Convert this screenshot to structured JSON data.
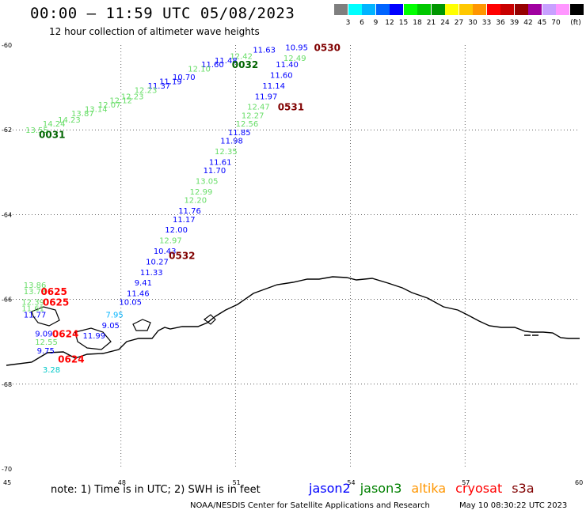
{
  "header": {
    "title": "00:00 – 11:59 UTC 05/08/2023",
    "subtitle": "12 hour collection of altimeter wave heights"
  },
  "colorbar": {
    "unit": "(ft)",
    "levels": [
      {
        "label": "",
        "color": "#7f7f7f"
      },
      {
        "label": "3",
        "color": "#00ffff"
      },
      {
        "label": "6",
        "color": "#00b4ff"
      },
      {
        "label": "9",
        "color": "#0064ff"
      },
      {
        "label": "12",
        "color": "#0000ff"
      },
      {
        "label": "15",
        "color": "#00ff00"
      },
      {
        "label": "18",
        "color": "#00c800"
      },
      {
        "label": "21",
        "color": "#009600"
      },
      {
        "label": "24",
        "color": "#ffff00"
      },
      {
        "label": "27",
        "color": "#ffc800"
      },
      {
        "label": "30",
        "color": "#ff9600"
      },
      {
        "label": "33",
        "color": "#ff0000"
      },
      {
        "label": "36",
        "color": "#c80000"
      },
      {
        "label": "39",
        "color": "#960000"
      },
      {
        "label": "42",
        "color": "#a000a0"
      },
      {
        "label": "45",
        "color": "#c8a0ff"
      },
      {
        "label": "70",
        "color": "#ff96ff"
      },
      {
        "label": "",
        "color": "#000000"
      }
    ]
  },
  "map": {
    "lon_range": [
      45,
      60
    ],
    "lat_range": [
      -70,
      -60
    ],
    "grid": true,
    "lon_ticks": [
      "45",
      "48",
      "51",
      "54",
      "57",
      "60"
    ],
    "lat_ticks": [
      "-60",
      "-62",
      "-64",
      "-66",
      "-68",
      "-70"
    ],
    "pass_labels": [
      {
        "text": "0530",
        "lon": 53.05,
        "lat": -60.05,
        "color": "#800000"
      },
      {
        "text": "0032",
        "lon": 50.9,
        "lat": -60.45,
        "color": "#006400"
      },
      {
        "text": "0531",
        "lon": 52.1,
        "lat": -61.45,
        "color": "#800000"
      },
      {
        "text": "0031",
        "lon": 45.85,
        "lat": -62.1,
        "color": "#006400"
      },
      {
        "text": "0532",
        "lon": 49.25,
        "lat": -64.95,
        "color": "#800000"
      },
      {
        "text": "0625",
        "lon": 45.9,
        "lat": -65.8,
        "color": "#ff0000"
      },
      {
        "text": "0625",
        "lon": 45.95,
        "lat": -66.05,
        "color": "#ff0000"
      },
      {
        "text": "0624",
        "lon": 46.2,
        "lat": -66.8,
        "color": "#ff0000"
      },
      {
        "text": "0624",
        "lon": 46.35,
        "lat": -67.4,
        "color": "#ff0000"
      }
    ],
    "observations": [
      {
        "v": "11.63",
        "lon": 51.45,
        "lat": -60.1,
        "c": "#0000ff"
      },
      {
        "v": "10.95",
        "lon": 52.3,
        "lat": -60.05,
        "c": "#0000ff"
      },
      {
        "v": "12.42",
        "lon": 50.85,
        "lat": -60.25,
        "c": "#66dd66"
      },
      {
        "v": "12.49",
        "lon": 52.25,
        "lat": -60.3,
        "c": "#66dd66"
      },
      {
        "v": "11.48",
        "lon": 50.45,
        "lat": -60.35,
        "c": "#0000ff"
      },
      {
        "v": "11.60",
        "lon": 50.1,
        "lat": -60.45,
        "c": "#0000ff"
      },
      {
        "v": "11.40",
        "lon": 52.05,
        "lat": -60.45,
        "c": "#0000ff"
      },
      {
        "v": "12.10",
        "lon": 49.75,
        "lat": -60.55,
        "c": "#66dd66"
      },
      {
        "v": "11.60",
        "lon": 51.9,
        "lat": -60.7,
        "c": "#0000ff"
      },
      {
        "v": "10.70",
        "lon": 49.35,
        "lat": -60.75,
        "c": "#0000ff"
      },
      {
        "v": "11.19",
        "lon": 49.0,
        "lat": -60.85,
        "c": "#0000ff"
      },
      {
        "v": "11.14",
        "lon": 51.7,
        "lat": -60.95,
        "c": "#0000ff"
      },
      {
        "v": "11.37",
        "lon": 48.7,
        "lat": -60.95,
        "c": "#0000ff"
      },
      {
        "v": "12.23",
        "lon": 48.35,
        "lat": -61.05,
        "c": "#66dd66"
      },
      {
        "v": "11.97",
        "lon": 51.5,
        "lat": -61.2,
        "c": "#0000ff"
      },
      {
        "v": "12.23",
        "lon": 48.0,
        "lat": -61.2,
        "c": "#66dd66"
      },
      {
        "v": "12.12",
        "lon": 47.7,
        "lat": -61.3,
        "c": "#66dd66"
      },
      {
        "v": "12.47",
        "lon": 51.3,
        "lat": -61.45,
        "c": "#66dd66"
      },
      {
        "v": "12.07",
        "lon": 47.4,
        "lat": -61.4,
        "c": "#66dd66"
      },
      {
        "v": "13.14",
        "lon": 47.05,
        "lat": -61.5,
        "c": "#66dd66"
      },
      {
        "v": "12.27",
        "lon": 51.15,
        "lat": -61.65,
        "c": "#66dd66"
      },
      {
        "v": "13.87",
        "lon": 46.7,
        "lat": -61.6,
        "c": "#66dd66"
      },
      {
        "v": "12.56",
        "lon": 51.0,
        "lat": -61.85,
        "c": "#66dd66"
      },
      {
        "v": "14.23",
        "lon": 46.35,
        "lat": -61.75,
        "c": "#66dd66"
      },
      {
        "v": "14.24",
        "lon": 45.95,
        "lat": -61.85,
        "c": "#66dd66"
      },
      {
        "v": "11.85",
        "lon": 50.8,
        "lat": -62.05,
        "c": "#0000ff"
      },
      {
        "v": "13.55",
        "lon": 45.5,
        "lat": -62.0,
        "c": "#66dd66"
      },
      {
        "v": "11.98",
        "lon": 50.6,
        "lat": -62.25,
        "c": "#0000ff"
      },
      {
        "v": "12.35",
        "lon": 50.45,
        "lat": -62.5,
        "c": "#66dd66"
      },
      {
        "v": "11.61",
        "lon": 50.3,
        "lat": -62.75,
        "c": "#0000ff"
      },
      {
        "v": "11.70",
        "lon": 50.15,
        "lat": -62.95,
        "c": "#0000ff"
      },
      {
        "v": "13.05",
        "lon": 49.95,
        "lat": -63.2,
        "c": "#66dd66"
      },
      {
        "v": "12.99",
        "lon": 49.8,
        "lat": -63.45,
        "c": "#66dd66"
      },
      {
        "v": "12.20",
        "lon": 49.65,
        "lat": -63.65,
        "c": "#66dd66"
      },
      {
        "v": "11.76",
        "lon": 49.5,
        "lat": -63.9,
        "c": "#0000ff"
      },
      {
        "v": "11.17",
        "lon": 49.35,
        "lat": -64.1,
        "c": "#0000ff"
      },
      {
        "v": "12.00",
        "lon": 49.15,
        "lat": -64.35,
        "c": "#0000ff"
      },
      {
        "v": "12.97",
        "lon": 49.0,
        "lat": -64.6,
        "c": "#66dd66"
      },
      {
        "v": "10.43",
        "lon": 48.85,
        "lat": -64.85,
        "c": "#0000ff"
      },
      {
        "v": "10.27",
        "lon": 48.65,
        "lat": -65.1,
        "c": "#0000ff"
      },
      {
        "v": "11.33",
        "lon": 48.5,
        "lat": -65.35,
        "c": "#0000ff"
      },
      {
        "v": "9.41",
        "lon": 48.35,
        "lat": -65.6,
        "c": "#0000ff"
      },
      {
        "v": "13.86",
        "lon": 45.45,
        "lat": -65.65,
        "c": "#66dd66"
      },
      {
        "v": "13.73",
        "lon": 45.45,
        "lat": -65.8,
        "c": "#66dd66"
      },
      {
        "v": "11.46",
        "lon": 48.15,
        "lat": -65.85,
        "c": "#0000ff"
      },
      {
        "v": "12.39",
        "lon": 45.4,
        "lat": -66.05,
        "c": "#66dd66"
      },
      {
        "v": "10.05",
        "lon": 47.95,
        "lat": -66.05,
        "c": "#0000ff"
      },
      {
        "v": "11.61",
        "lon": 45.4,
        "lat": -66.2,
        "c": "#66dd66"
      },
      {
        "v": "11.77",
        "lon": 45.45,
        "lat": -66.35,
        "c": "#0000ff"
      },
      {
        "v": "7.95",
        "lon": 47.6,
        "lat": -66.35,
        "c": "#00b4ff"
      },
      {
        "v": "9.05",
        "lon": 47.5,
        "lat": -66.6,
        "c": "#0000ff"
      },
      {
        "v": "9.09",
        "lon": 45.75,
        "lat": -66.8,
        "c": "#0000ff"
      },
      {
        "v": "11.99",
        "lon": 47.0,
        "lat": -66.85,
        "c": "#0000ff"
      },
      {
        "v": "12.55",
        "lon": 45.75,
        "lat": -67.0,
        "c": "#66dd66"
      },
      {
        "v": "9.75",
        "lon": 45.8,
        "lat": -67.2,
        "c": "#0000ff"
      },
      {
        "v": "3.28",
        "lon": 45.95,
        "lat": -67.65,
        "c": "#00c8c8"
      }
    ]
  },
  "footer": {
    "note": "note: 1) Time is in UTC; 2) SWH is in feet",
    "satellites": [
      {
        "name": "jason2",
        "color": "#0000ff"
      },
      {
        "name": "jason3",
        "color": "#008000"
      },
      {
        "name": "altika",
        "color": "#ff9600"
      },
      {
        "name": "cryosat",
        "color": "#ff0000"
      },
      {
        "name": "s3a",
        "color": "#800000"
      }
    ],
    "credit": "NOAA/NESDIS Center for Satellite Applications and Research",
    "timestamp": "May 10 08:30:22 UTC 2023"
  }
}
